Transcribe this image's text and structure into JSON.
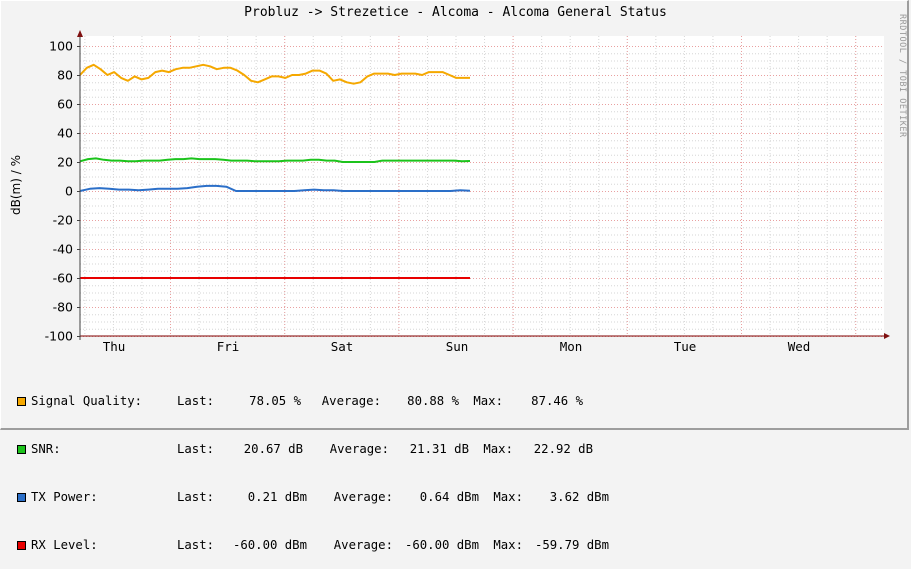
{
  "title": "Probluz -> Strezetice - Alcoma - Alcoma General Status",
  "watermark": "RRDTOOL / TOBI OETIKER",
  "chart_data": {
    "type": "line",
    "title": "Probluz -> Strezetice - Alcoma - Alcoma General Status",
    "xlabel": "",
    "ylabel": "dB(m) / %",
    "ylim": [
      -100,
      100
    ],
    "yticks": [
      "100",
      "80",
      "60",
      "40",
      "20",
      "0",
      "-20",
      "-40",
      "-60",
      "-80",
      "-100"
    ],
    "xticks": [
      "Thu",
      "Fri",
      "Sat",
      "Sun",
      "Mon",
      "Tue",
      "Wed"
    ],
    "grid": true,
    "legend_position": "bottom",
    "x_note": "data covers Thu through early Sun; Mon-Wed empty",
    "series": [
      {
        "name": "Signal Quality",
        "color": "#f5a800",
        "unit": "%",
        "last": "78.05 %",
        "average": "80.88 %",
        "max": "87.46 %",
        "values": [
          80,
          85,
          87,
          84,
          80,
          82,
          78,
          76,
          79,
          77,
          78,
          82,
          83,
          82,
          84,
          85,
          85,
          86,
          87,
          86,
          84,
          85,
          85,
          83,
          80,
          76,
          75,
          77,
          79,
          79,
          78,
          80,
          80,
          81,
          83,
          83,
          81,
          76,
          77,
          75,
          74,
          75,
          79,
          81,
          81,
          81,
          80,
          81,
          81,
          81,
          80,
          82,
          82,
          82,
          80,
          78,
          78,
          78
        ]
      },
      {
        "name": "SNR",
        "color": "#1cc31c",
        "unit": "dB",
        "last": "20.67 dB",
        "average": "21.31 dB",
        "max": "22.92 dB",
        "values": [
          20.5,
          22,
          22.5,
          21.5,
          21,
          21,
          20.5,
          20.5,
          21,
          21,
          21,
          21.5,
          22,
          22,
          22.5,
          22,
          22,
          22,
          21.5,
          21,
          21,
          21,
          20.5,
          20.5,
          20.5,
          20.5,
          21,
          21,
          21,
          21.5,
          21.5,
          21,
          21,
          20,
          20,
          20,
          20,
          20,
          21,
          21,
          21,
          21,
          21,
          21,
          21,
          21,
          21,
          21,
          20.5,
          20.7
        ]
      },
      {
        "name": "TX Power",
        "color": "#2b6fc8",
        "unit": "dBm",
        "last": "0.21 dBm",
        "average": "0.64 dBm",
        "max": "3.62 dBm",
        "values": [
          0,
          1.5,
          2,
          1.5,
          1,
          1,
          0.5,
          1,
          1.5,
          1.5,
          1.5,
          2,
          3,
          3.5,
          3.5,
          3,
          0,
          0,
          0,
          0,
          0,
          0,
          0,
          0.5,
          1,
          0.5,
          0.5,
          0,
          0,
          0,
          0,
          0,
          0,
          0,
          0,
          0,
          0,
          0,
          0,
          0.5,
          0.2
        ]
      },
      {
        "name": "RX Level",
        "color": "#e80000",
        "unit": "dBm",
        "last": "-60.00 dBm",
        "average": "-60.00 dBm",
        "max": "-59.79 dBm",
        "values": [
          -60,
          -60,
          -60,
          -60,
          -60,
          -60,
          -60,
          -60,
          -60,
          -60
        ]
      }
    ]
  },
  "legend": [
    {
      "label": "Signal Quality:",
      "color": "#f5a800",
      "last_label": "Last:",
      "last": "78.05 %",
      "avg_label": "Average:",
      "avg": "80.88 %",
      "max_label": "Max:",
      "max": "87.46 %"
    },
    {
      "label": "SNR:",
      "color": "#1cc31c",
      "last_label": "Last:",
      "last": "20.67 dB",
      "avg_label": "Average:",
      "avg": "21.31 dB",
      "max_label": "Max:",
      "max": "22.92 dB"
    },
    {
      "label": "TX Power:",
      "color": "#2b6fc8",
      "last_label": "Last:",
      "last": "0.21 dBm",
      "avg_label": "Average:",
      "avg": "0.64 dBm",
      "max_label": "Max:",
      "max": "3.62 dBm"
    },
    {
      "label": "RX Level:",
      "color": "#e80000",
      "last_label": "Last:",
      "last": "-60.00 dBm",
      "avg_label": "Average:",
      "avg": "-60.00 dBm",
      "max_label": "Max:",
      "max": "-59.79 dBm"
    }
  ]
}
